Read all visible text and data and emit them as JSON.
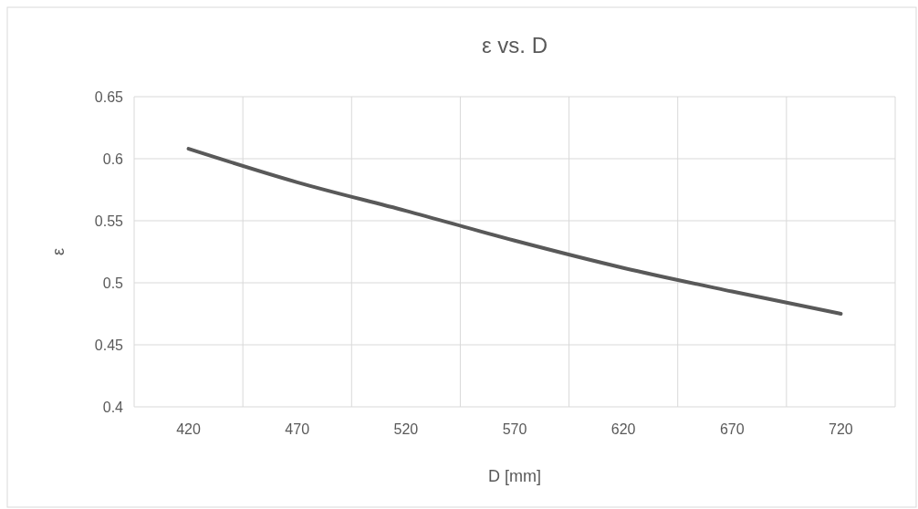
{
  "chart_data": {
    "type": "line",
    "title": "ε vs. D",
    "xlabel": "D [mm]",
    "ylabel": "ε",
    "categories": [
      "420",
      "470",
      "520",
      "570",
      "620",
      "670",
      "720"
    ],
    "series": [
      {
        "color": "#595959",
        "values": [
          0.608,
          0.581,
          0.558,
          0.534,
          0.512,
          0.493,
          0.475
        ]
      }
    ],
    "ylim": [
      0.4,
      0.65
    ],
    "yticks": [
      0.4,
      0.45,
      0.5,
      0.55,
      0.6,
      0.65
    ],
    "grid": true,
    "marker": "none",
    "line_style": "solid"
  }
}
